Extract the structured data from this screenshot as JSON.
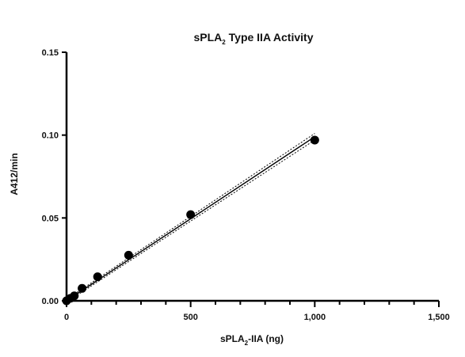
{
  "chart_data": {
    "type": "scatter",
    "title": {
      "prefix": "sPLA",
      "sub": "2",
      "suffix": " Type IIA Activity"
    },
    "xlabel": {
      "prefix": "sPLA",
      "sub": "2",
      "suffix": "-IIA (ng)"
    },
    "ylabel": "A412/min",
    "xlim": [
      0,
      1500
    ],
    "ylim": [
      0,
      0.15
    ],
    "x_ticks": [
      0,
      500,
      1000,
      1500
    ],
    "x_tick_labels": [
      "0",
      "500",
      "1,000",
      "1,500"
    ],
    "y_ticks": [
      0,
      0.05,
      0.1,
      0.15
    ],
    "y_tick_labels": [
      "0.00",
      "0.05",
      "0.10",
      "0.15"
    ],
    "grid": false,
    "points": [
      {
        "x": 0,
        "y": 0.0
      },
      {
        "x": 15.6,
        "y": 0.0015
      },
      {
        "x": 31.25,
        "y": 0.003
      },
      {
        "x": 62.5,
        "y": 0.0075
      },
      {
        "x": 125,
        "y": 0.0145
      },
      {
        "x": 250,
        "y": 0.0275
      },
      {
        "x": 500,
        "y": 0.052
      },
      {
        "x": 1000,
        "y": 0.097
      }
    ],
    "fit_line": {
      "x": [
        0,
        1000
      ],
      "y": [
        0.0,
        0.099
      ]
    },
    "confidence_band": {
      "upper": {
        "x": [
          0,
          1000
        ],
        "y": [
          0.0008,
          0.101
        ]
      },
      "lower": {
        "x": [
          0,
          1000
        ],
        "y": [
          -0.0008,
          0.097
        ]
      }
    }
  }
}
